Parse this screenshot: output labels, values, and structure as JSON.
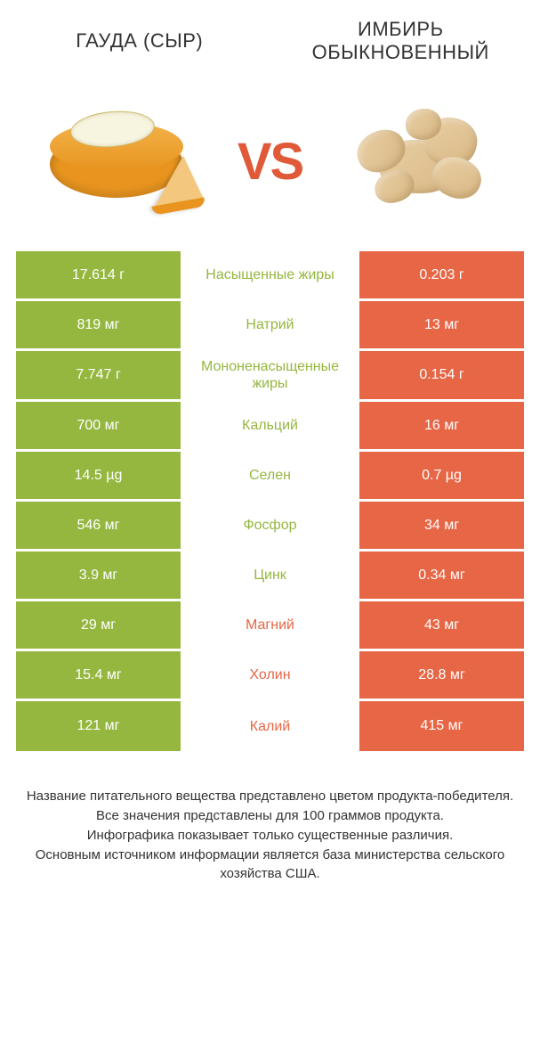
{
  "colors": {
    "left_bg": "#95b73f",
    "right_bg": "#e76646",
    "left_text": "#95b73f",
    "right_text": "#e76646",
    "vs": "#e05a3a"
  },
  "header": {
    "left_title": "ГАУДА (СЫР)",
    "right_title": "ИМБИРЬ ОБЫКНОВЕННЫЙ"
  },
  "vs_label": "VS",
  "rows": [
    {
      "nutrient": "Насыщенные жиры",
      "left": "17.614 г",
      "right": "0.203 г",
      "winner": "left"
    },
    {
      "nutrient": "Натрий",
      "left": "819 мг",
      "right": "13 мг",
      "winner": "left"
    },
    {
      "nutrient": "Мононенасыщенные жиры",
      "left": "7.747 г",
      "right": "0.154 г",
      "winner": "left"
    },
    {
      "nutrient": "Кальций",
      "left": "700 мг",
      "right": "16 мг",
      "winner": "left"
    },
    {
      "nutrient": "Селен",
      "left": "14.5 µg",
      "right": "0.7 µg",
      "winner": "left"
    },
    {
      "nutrient": "Фосфор",
      "left": "546 мг",
      "right": "34 мг",
      "winner": "left"
    },
    {
      "nutrient": "Цинк",
      "left": "3.9 мг",
      "right": "0.34 мг",
      "winner": "left"
    },
    {
      "nutrient": "Магний",
      "left": "29 мг",
      "right": "43 мг",
      "winner": "right"
    },
    {
      "nutrient": "Холин",
      "left": "15.4 мг",
      "right": "28.8 мг",
      "winner": "right"
    },
    {
      "nutrient": "Калий",
      "left": "121 мг",
      "right": "415 мг",
      "winner": "right"
    }
  ],
  "footnote": "Название питательного вещества представлено цветом продукта-победителя.\nВсе значения представлены для 100 граммов продукта.\nИнфографика показывает только существенные различия.\nОсновным источником информации является база министерства сельского хозяйства США."
}
